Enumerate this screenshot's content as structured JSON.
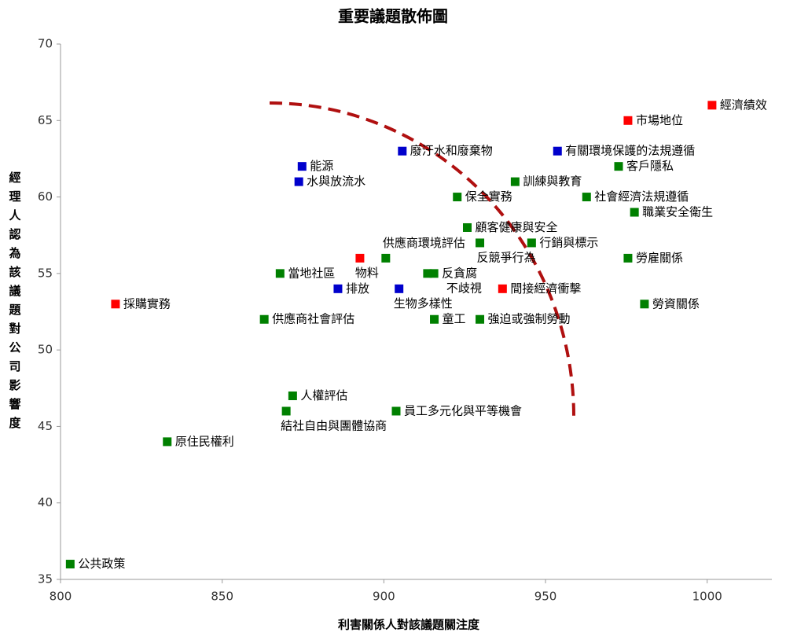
{
  "chart_data": {
    "type": "scatter",
    "title": "重要議題散佈圖",
    "x_label": "利害關係人對該議題關注度",
    "y_label": "經理人認為該議題對公司影響度",
    "xlim": [
      800,
      1020
    ],
    "xticks": [
      800,
      850,
      900,
      950,
      1000
    ],
    "ylim": [
      35,
      70
    ],
    "yticks": [
      35,
      40,
      45,
      50,
      55,
      60,
      65,
      70
    ],
    "points": [
      {
        "label": "經濟績效",
        "x": 1001.5,
        "y": 66,
        "color": "#ff0000"
      },
      {
        "label": "市場地位",
        "x": 975.5,
        "y": 65,
        "color": "#ff0000"
      },
      {
        "label": "有關環境保護的法規遵循",
        "x": 953.7,
        "y": 63,
        "color": "#0000cc"
      },
      {
        "label": "廢汙水和廢棄物",
        "x": 905.7,
        "y": 63,
        "color": "#0000cc"
      },
      {
        "label": "客戶隱私",
        "x": 972.6,
        "y": 62,
        "color": "#008000"
      },
      {
        "label": "能源",
        "x": 874.7,
        "y": 62,
        "color": "#0000cc"
      },
      {
        "label": "水與放流水",
        "x": 873.7,
        "y": 61,
        "color": "#0000cc"
      },
      {
        "label": "訓練與教育",
        "x": 940.6,
        "y": 61,
        "color": "#008000"
      },
      {
        "label": "保全實務",
        "x": 922.7,
        "y": 60,
        "color": "#008000"
      },
      {
        "label": "社會經濟法規遵循",
        "x": 962.7,
        "y": 60,
        "color": "#008000"
      },
      {
        "label": "職業安全衛生",
        "x": 977.5,
        "y": 59,
        "color": "#008000"
      },
      {
        "label": "顧客健康與安全",
        "x": 925.8,
        "y": 58,
        "color": "#008000"
      },
      {
        "label": "行銷與標示",
        "x": 945.7,
        "y": 57,
        "color": "#008000"
      },
      {
        "label": "反競爭行為",
        "x": 929.7,
        "y": 57,
        "color": "#008000"
      },
      {
        "label": "供應商環境評估",
        "x": 900.6,
        "y": 56,
        "color": "#008000"
      },
      {
        "label": "物料",
        "x": 892.6,
        "y": 56,
        "color": "#ff0000"
      },
      {
        "label": "勞雇關係",
        "x": 975.5,
        "y": 56,
        "color": "#008000"
      },
      {
        "label": "當地社區",
        "x": 867.9,
        "y": 55,
        "color": "#008000"
      },
      {
        "label": "不歧視",
        "x": 913.5,
        "y": 55,
        "color": "#008000"
      },
      {
        "label": "反貪腐",
        "x": 915.5,
        "y": 55,
        "color": "#008000"
      },
      {
        "label": "排放",
        "x": 885.8,
        "y": 54,
        "color": "#0000cc"
      },
      {
        "label": "生物多樣性",
        "x": 904.7,
        "y": 54,
        "color": "#0000cc"
      },
      {
        "label": "間接經濟衝擊",
        "x": 936.7,
        "y": 54,
        "color": "#ff0000"
      },
      {
        "label": "採購實務",
        "x": 817,
        "y": 53,
        "color": "#ff0000"
      },
      {
        "label": "勞資關係",
        "x": 980.6,
        "y": 53,
        "color": "#008000"
      },
      {
        "label": "供應商社會評估",
        "x": 863,
        "y": 52,
        "color": "#008000"
      },
      {
        "label": "童工",
        "x": 915.6,
        "y": 52,
        "color": "#008000"
      },
      {
        "label": "強迫或強制勞動",
        "x": 929.7,
        "y": 52,
        "color": "#008000"
      },
      {
        "label": "人權評估",
        "x": 871.8,
        "y": 47,
        "color": "#008000"
      },
      {
        "label": "結社自由與團體協商",
        "x": 869.8,
        "y": 46,
        "color": "#008000"
      },
      {
        "label": "員工多元化與平等機會",
        "x": 903.8,
        "y": 46,
        "color": "#008000"
      },
      {
        "label": "原住民權利",
        "x": 833,
        "y": 44,
        "color": "#008000"
      },
      {
        "label": "公共政策",
        "x": 803,
        "y": 36,
        "color": "#008000"
      }
    ]
  }
}
